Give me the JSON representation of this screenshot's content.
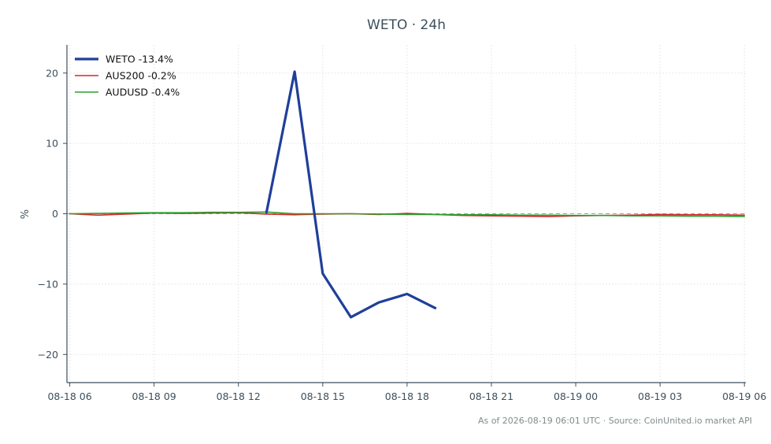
{
  "chart_data": {
    "type": "line",
    "title": "WETO · 24h",
    "ylabel": "%",
    "xlabel": "",
    "ylim": [
      -24,
      24
    ],
    "xlim": [
      -0.1,
      24.05
    ],
    "grid": true,
    "legend_position": "top-left",
    "zero_line": {
      "value": 0,
      "color": "#8fa3b0"
    },
    "x_ticks": [
      {
        "x": 0,
        "label": "08-18 06"
      },
      {
        "x": 3,
        "label": "08-18 09"
      },
      {
        "x": 6,
        "label": "08-18 12"
      },
      {
        "x": 9,
        "label": "08-18 15"
      },
      {
        "x": 12,
        "label": "08-18 18"
      },
      {
        "x": 15,
        "label": "08-18 21"
      },
      {
        "x": 18,
        "label": "08-19 00"
      },
      {
        "x": 21,
        "label": "08-19 03"
      },
      {
        "x": 24,
        "label": "08-19 06"
      }
    ],
    "y_ticks": [
      {
        "y": 20,
        "label": "20"
      },
      {
        "y": 10,
        "label": "10"
      },
      {
        "y": 0,
        "label": "0"
      },
      {
        "y": -10,
        "label": "−10"
      },
      {
        "y": -20,
        "label": "−20"
      }
    ],
    "series": [
      {
        "name": "AUS200 -0.2%",
        "color": "#d62728",
        "width": 1.6,
        "x": [
          0,
          1,
          2,
          3,
          4,
          5,
          6,
          7,
          8,
          9,
          10,
          11,
          12,
          13,
          14,
          15,
          16,
          17,
          18,
          19,
          20,
          21,
          22,
          23,
          24
        ],
        "y": [
          0.0,
          -0.2,
          -0.05,
          0.1,
          0.05,
          0.1,
          0.15,
          -0.05,
          -0.15,
          -0.05,
          0.0,
          -0.1,
          0.05,
          -0.1,
          -0.25,
          -0.3,
          -0.35,
          -0.4,
          -0.3,
          -0.25,
          -0.2,
          -0.1,
          -0.15,
          -0.15,
          -0.2
        ]
      },
      {
        "name": "AUDUSD -0.4%",
        "color": "#2ca02c",
        "width": 1.6,
        "x": [
          0,
          1,
          2,
          3,
          4,
          5,
          6,
          7,
          8,
          9,
          10,
          11,
          12,
          13,
          14,
          15,
          16,
          17,
          18,
          19,
          20,
          21,
          22,
          23,
          24
        ],
        "y": [
          0.0,
          0.05,
          0.1,
          0.15,
          0.15,
          0.2,
          0.2,
          0.25,
          0.0,
          0.0,
          0.0,
          -0.05,
          -0.1,
          -0.1,
          -0.15,
          -0.15,
          -0.2,
          -0.2,
          -0.25,
          -0.25,
          -0.3,
          -0.3,
          -0.35,
          -0.35,
          -0.4
        ]
      },
      {
        "name": "WETO -13.4%",
        "color": "#1f3f99",
        "width": 3.2,
        "x": [
          7,
          8,
          9,
          10,
          11,
          12,
          13
        ],
        "y": [
          0.2,
          20.2,
          -8.5,
          -14.7,
          -12.6,
          -11.4,
          -13.4
        ]
      }
    ],
    "legend": [
      {
        "name": "WETO -13.4%",
        "color": "#1f3f99",
        "width": 3.2
      },
      {
        "name": "AUS200 -0.2%",
        "color": "#d62728",
        "width": 1.6
      },
      {
        "name": "AUDUSD -0.4%",
        "color": "#2ca02c",
        "width": 1.6
      }
    ],
    "footer": "As of 2026-08-19 06:01 UTC · Source: CoinUnited.io market API"
  }
}
